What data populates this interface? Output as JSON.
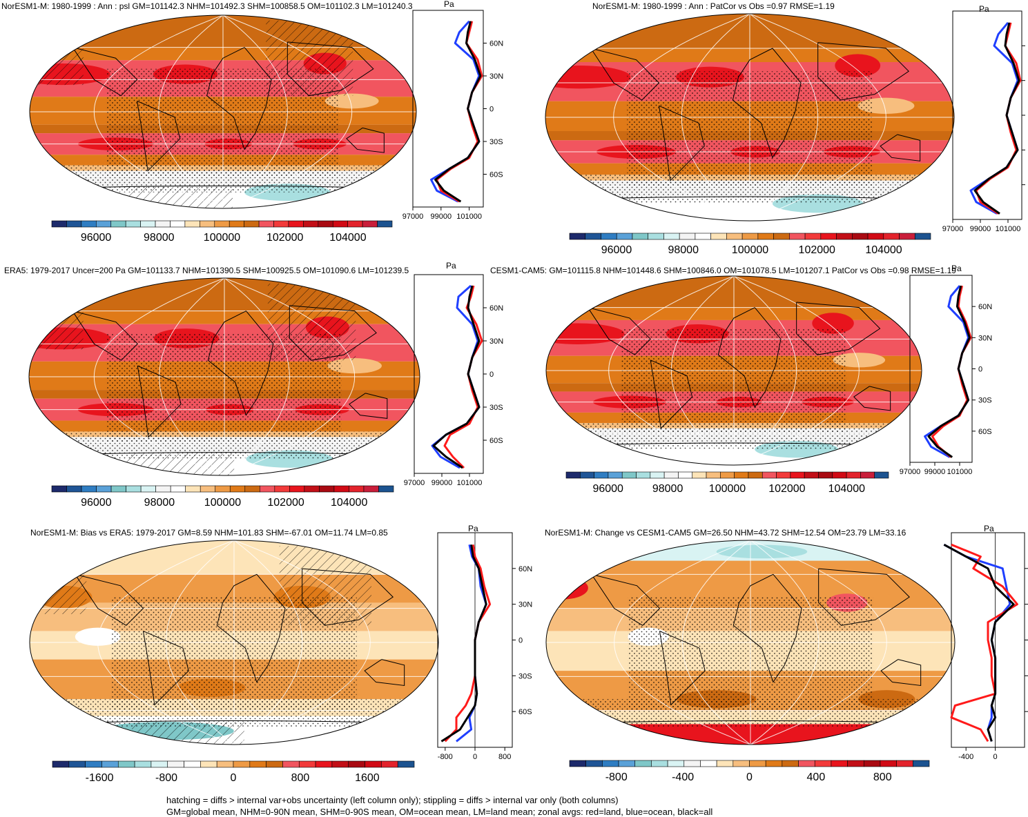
{
  "colors": {
    "land": "#ff1a1a",
    "ocean": "#1f3fff",
    "all": "#000000",
    "graticule": "#ffffff",
    "psl_palette": [
      "#1d2a6b",
      "#1f5596",
      "#2f7dc2",
      "#5aa1d8",
      "#7fc7c8",
      "#a9dfe0",
      "#d9f3f3",
      "#f4f4f4",
      "#ffffff",
      "#fde4b8",
      "#f7be7e",
      "#ee9a45",
      "#e07a18",
      "#cc6a12",
      "#f1555f",
      "#f23a3a",
      "#e8141d",
      "#c20f17",
      "#a90a12",
      "#d10a15",
      "#e3232c",
      "#c91e3a",
      "#1c5390"
    ],
    "bias_palette": [
      "#1d2a6b",
      "#1f5596",
      "#2f7dc2",
      "#5aa1d8",
      "#7fc7c8",
      "#a9dfe0",
      "#d9f3f3",
      "#f4f4f4",
      "#ffffff",
      "#fde4b8",
      "#f7be7e",
      "#ee9a45",
      "#e07a18",
      "#cc6a12",
      "#f1555f",
      "#f23a3a",
      "#e8141d",
      "#c20f17",
      "#a90a12",
      "#d10a15",
      "#e3232c",
      "#1c5390"
    ]
  },
  "panels": [
    {
      "id": "p1",
      "title": "NorESM1-M: 1980-1999 : Ann : psl GM=101142.3 NHM=101492.3 SHM=100858.5 OM=101102.3 LM=101240.3",
      "unit": "Pa",
      "field": "psl",
      "hatch": true,
      "profile_ticks": [
        "97000",
        "99000",
        "101000"
      ],
      "lat_ticks": [
        "60N",
        "30N",
        "0",
        "30S",
        "60S"
      ],
      "colorbar_labels": [
        "96000",
        "98000",
        "100000",
        "102000",
        "104000"
      ]
    },
    {
      "id": "p2",
      "title": "NorESM1-M: 1980-1999 : Ann : PatCor vs Obs =0.97 RMSE=1.19",
      "unit": "Pa",
      "field": "psl",
      "hatch": false,
      "profile_ticks": [
        "97000",
        "99000",
        "101000"
      ],
      "lat_ticks": [],
      "colorbar_labels": [
        "96000",
        "98000",
        "100000",
        "102000",
        "104000"
      ]
    },
    {
      "id": "p3",
      "title": "ERA5: 1979-2017 Uncer=200 Pa GM=101133.7 NHM=101390.5 SHM=100925.5 OM=101090.6 LM=101239.5",
      "unit": "Pa",
      "field": "psl",
      "hatch": true,
      "profile_ticks": [
        "97000",
        "99000",
        "101000"
      ],
      "lat_ticks": [
        "60N",
        "30N",
        "0",
        "30S",
        "60S"
      ],
      "colorbar_labels": [
        "96000",
        "98000",
        "100000",
        "102000",
        "104000"
      ]
    },
    {
      "id": "p4",
      "title": "CESM1-CAM5: GM=101115.8 NHM=101448.6 SHM=100846.0 OM=101078.5 LM=101207.1 PatCor vs Obs =0.98 RMSE=1.19",
      "unit": "Pa",
      "field": "psl",
      "hatch": false,
      "profile_ticks": [
        "97000",
        "99000",
        "101000"
      ],
      "lat_ticks": [
        "60N",
        "30N",
        "0",
        "30S",
        "60S"
      ],
      "colorbar_labels": [
        "96000",
        "98000",
        "100000",
        "102000",
        "104000"
      ]
    },
    {
      "id": "p5",
      "title": "NorESM1-M: Bias vs ERA5: 1979-2017 GM=8.59 NHM=101.83 SHM=-67.01 OM=11.74 LM=0.85",
      "unit": "Pa",
      "field": "bias",
      "hatch": true,
      "profile_ticks": [
        "-800",
        "0",
        "800"
      ],
      "lat_ticks": [
        "60N",
        "30N",
        "0",
        "30S",
        "60S"
      ],
      "colorbar_labels": [
        "-1600",
        "-800",
        "0",
        "800",
        "1600"
      ]
    },
    {
      "id": "p6",
      "title": "NorESM1-M: Change vs CESM1-CAM5 GM=26.50 NHM=43.72 SHM=12.54 OM=23.79 LM=33.16",
      "unit": "Pa",
      "field": "change",
      "hatch": false,
      "profile_ticks": [
        "-400",
        "0"
      ],
      "lat_ticks": [],
      "colorbar_labels": [
        "-800",
        "-400",
        "0",
        "400",
        "800"
      ]
    }
  ],
  "footer": {
    "line1": "hatching = diffs > internal var+obs uncertainty (left column only); stippling = diffs > internal var only (both columns)",
    "line2": "GM=global mean, NHM=0-90N mean, SHM=0-90S mean, OM=ocean mean, LM=land mean; zonal avgs: red=land, blue=ocean, black=all"
  },
  "chart_data": [
    {
      "type": "heatmap",
      "title": "NorESM1-M: 1980-1999 : Ann : psl GM=101142.3 NHM=101492.3 SHM=100858.5 OM=101102.3 LM=101240.3",
      "colorbar_ticks": [
        96000,
        98000,
        100000,
        102000,
        104000
      ],
      "zonal_profile": {
        "lat": [
          80,
          70,
          60,
          45,
          30,
          15,
          0,
          -15,
          -30,
          -45,
          -55,
          -65,
          -75,
          -85
        ],
        "all": [
          101100,
          100900,
          100800,
          101400,
          101800,
          101200,
          100900,
          101300,
          101700,
          100900,
          99600,
          98600,
          99200,
          100400
        ],
        "land": [
          101200,
          101000,
          100800,
          101600,
          101900,
          101200,
          100900,
          101200,
          101600,
          101000,
          99700,
          98700,
          99000,
          100300
        ],
        "ocean": [
          101000,
          100300,
          100000,
          101300,
          101700,
          101200,
          100900,
          101300,
          101700,
          100900,
          99600,
          98300,
          98700,
          100200
        ]
      }
    },
    {
      "type": "heatmap",
      "title": "NorESM1-M: 1980-1999 : Ann : PatCor vs Obs =0.97 RMSE=1.19",
      "colorbar_ticks": [
        96000,
        98000,
        100000,
        102000,
        104000
      ],
      "zonal_profile": {
        "lat": [
          80,
          70,
          60,
          45,
          30,
          15,
          0,
          -15,
          -30,
          -45,
          -55,
          -65,
          -75,
          -85
        ],
        "all": [
          101100,
          100900,
          100800,
          101400,
          101800,
          101200,
          100900,
          101300,
          101700,
          100900,
          99600,
          98600,
          99200,
          100400
        ],
        "land": [
          101200,
          101000,
          100800,
          101600,
          101900,
          101200,
          100900,
          101200,
          101600,
          101000,
          99700,
          98700,
          99000,
          100300
        ],
        "ocean": [
          101000,
          100300,
          100000,
          101300,
          101700,
          101200,
          100900,
          101300,
          101700,
          100900,
          99600,
          98300,
          98700,
          100200
        ]
      }
    },
    {
      "type": "heatmap",
      "title": "ERA5: 1979-2017 Uncer=200 Pa GM=101133.7 NHM=101390.5 SHM=100925.5 OM=101090.6 LM=101239.5",
      "colorbar_ticks": [
        96000,
        98000,
        100000,
        102000,
        104000
      ],
      "zonal_profile": {
        "lat": [
          80,
          70,
          60,
          45,
          30,
          15,
          0,
          -15,
          -30,
          -45,
          -55,
          -65,
          -75,
          -85
        ],
        "all": [
          101200,
          101000,
          100900,
          101300,
          101700,
          101200,
          100900,
          101300,
          101700,
          100800,
          99300,
          98400,
          99300,
          100500
        ],
        "land": [
          101300,
          101100,
          100800,
          101500,
          101900,
          101200,
          100900,
          101200,
          101600,
          101000,
          99600,
          99200,
          99800,
          100600
        ],
        "ocean": [
          101100,
          100200,
          100100,
          101200,
          101600,
          101200,
          100900,
          101300,
          101700,
          100800,
          99300,
          98300,
          98900,
          100300
        ]
      }
    },
    {
      "type": "heatmap",
      "title": "CESM1-CAM5: GM=101115.8 NHM=101448.6 SHM=100846.0 OM=101078.5 LM=101207.1 PatCor vs Obs =0.98 RMSE=1.19",
      "colorbar_ticks": [
        96000,
        98000,
        100000,
        102000,
        104000
      ],
      "zonal_profile": {
        "lat": [
          80,
          70,
          60,
          45,
          30,
          15,
          0,
          -15,
          -30,
          -45,
          -55,
          -65,
          -75,
          -85
        ],
        "all": [
          101100,
          100900,
          100800,
          101400,
          101800,
          101200,
          100900,
          101300,
          101700,
          100900,
          99500,
          98500,
          99200,
          100400
        ],
        "land": [
          101200,
          101000,
          100900,
          101500,
          101900,
          101200,
          100900,
          101200,
          101600,
          101000,
          99700,
          98800,
          99300,
          100300
        ],
        "ocean": [
          101000,
          100300,
          100100,
          101300,
          101700,
          101200,
          100900,
          101300,
          101700,
          100900,
          99500,
          98200,
          98700,
          100200
        ]
      }
    },
    {
      "type": "heatmap",
      "title": "NorESM1-M: Bias vs ERA5: 1979-2017 GM=8.59 NHM=101.83 SHM=-67.01 OM=11.74 LM=0.85",
      "colorbar_ticks": [
        -1600,
        -800,
        0,
        800,
        1600
      ],
      "zonal_profile": {
        "lat": [
          80,
          70,
          60,
          45,
          30,
          15,
          0,
          -15,
          -30,
          -45,
          -55,
          -65,
          -75,
          -85
        ],
        "all": [
          -100,
          -50,
          100,
          200,
          300,
          100,
          0,
          0,
          0,
          50,
          0,
          -200,
          -400,
          -900
        ],
        "land": [
          -50,
          0,
          150,
          250,
          400,
          100,
          0,
          0,
          0,
          -100,
          -250,
          -500,
          -500,
          -800
        ],
        "ocean": [
          -150,
          -80,
          100,
          150,
          300,
          100,
          0,
          0,
          0,
          50,
          0,
          -150,
          -100,
          -500
        ]
      }
    },
    {
      "type": "heatmap",
      "title": "NorESM1-M: Change vs CESM1-CAM5 GM=26.50 NHM=43.72 SHM=12.54 OM=23.79 LM=33.16",
      "colorbar_ticks": [
        -800,
        -400,
        0,
        400,
        800
      ],
      "zonal_profile": {
        "lat": [
          80,
          70,
          60,
          45,
          30,
          15,
          0,
          -15,
          -30,
          -45,
          -55,
          -65,
          -75,
          -85
        ],
        "all": [
          -700,
          -400,
          -100,
          0,
          250,
          0,
          -50,
          0,
          0,
          0,
          -50,
          0,
          -100,
          -50
        ],
        "land": [
          -600,
          -200,
          -300,
          100,
          300,
          -100,
          -100,
          -50,
          -50,
          0,
          -550,
          -600,
          -200,
          -100
        ],
        "ocean": [
          -700,
          -400,
          100,
          150,
          200,
          0,
          -50,
          0,
          0,
          0,
          -50,
          -50,
          -100,
          -50
        ]
      }
    }
  ]
}
